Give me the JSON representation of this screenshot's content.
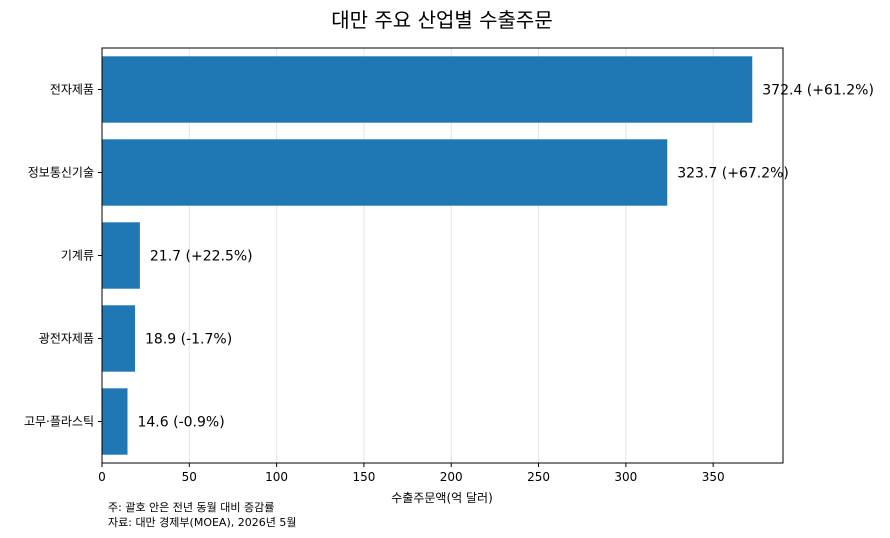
{
  "chart_data": {
    "type": "bar",
    "orientation": "horizontal",
    "title": "대만 주요 산업별 수출주문",
    "xlabel": "수출주문액(억 달러)",
    "ylabel": "",
    "xlim": [
      0,
      390
    ],
    "xticks": [
      0,
      50,
      100,
      150,
      200,
      250,
      300,
      350
    ],
    "grid": "x",
    "color": "#1f77b4",
    "categories": [
      "전자제품",
      "정보통신기술",
      "기계류",
      "광전자제품",
      "고무·플라스틱"
    ],
    "values": [
      372.4,
      323.7,
      21.7,
      18.9,
      14.6
    ],
    "data_labels": [
      "372.4  (+61.2%)",
      "323.7  (+67.2%)",
      "21.7  (+22.5%)",
      "18.9  (-1.7%)",
      "14.6  (-0.9%)"
    ],
    "notes": [
      "주: 괄호 안은 전년 동월 대비 증감률",
      "자료: 대만 경제부(MOEA), 2026년 5월"
    ]
  }
}
